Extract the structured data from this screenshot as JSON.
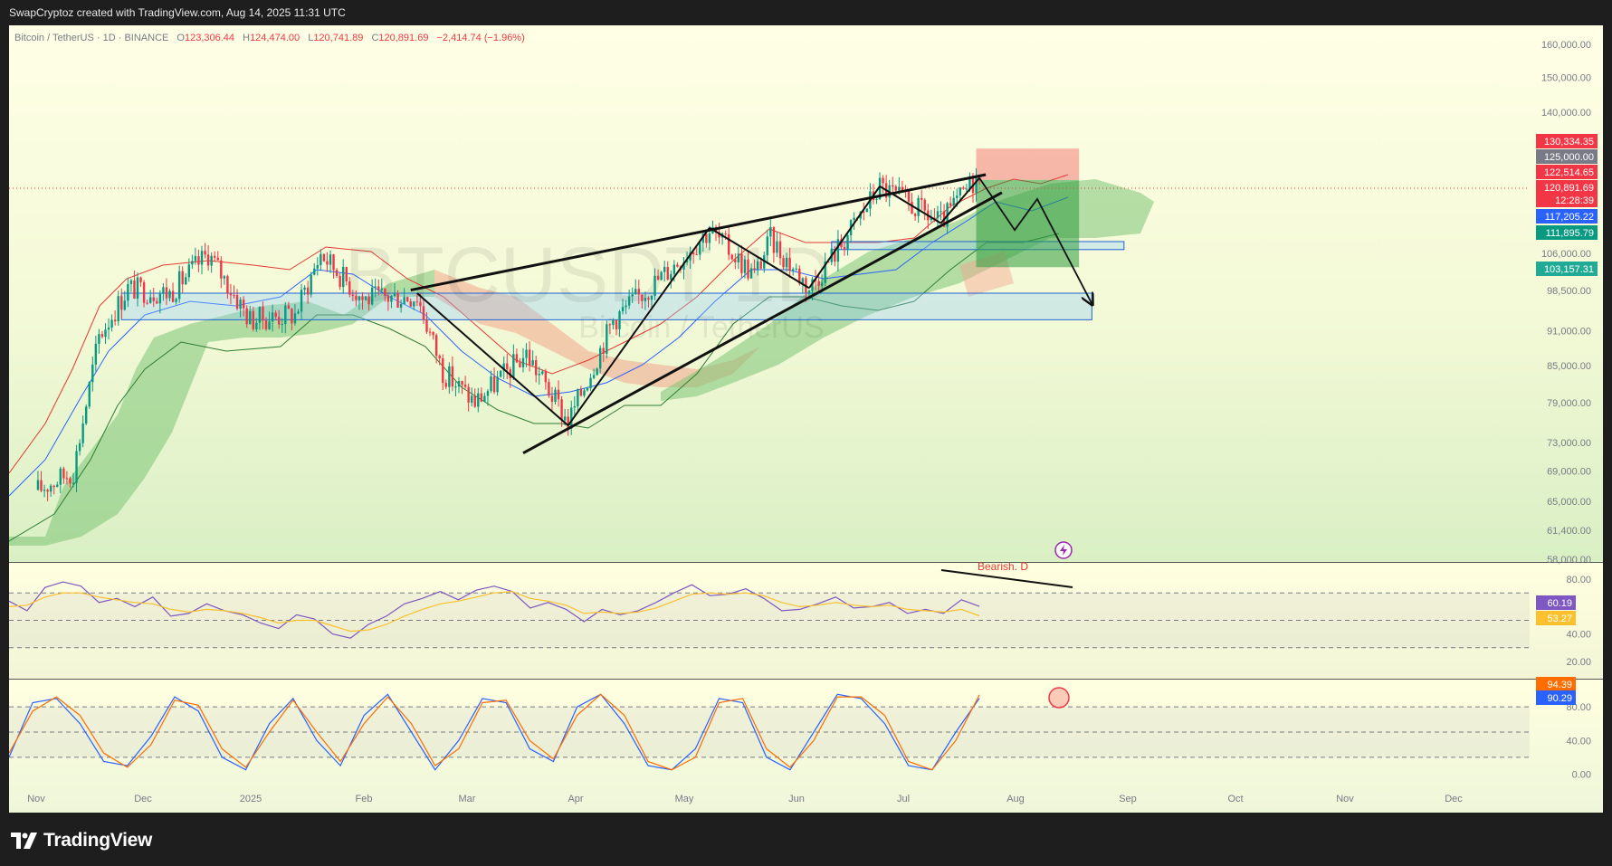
{
  "header": {
    "text": "SwapCryptoz created with TradingView.com, Aug 14, 2025 11:31 UTC"
  },
  "symbol_info": {
    "name": "Bitcoin / TetherUS · 1D · BINANCE",
    "o_label": "O",
    "o_value": "123,306.44",
    "h_label": "H",
    "h_value": "124,474.00",
    "l_label": "L",
    "l_value": "120,741.89",
    "c_label": "C",
    "c_value": "120,891.69",
    "change": "−2,414.74 (−1.96%)"
  },
  "watermark": {
    "ticker": "BTCUSDT 1D",
    "name": "Bitcoin / TetherUS"
  },
  "price_axis": {
    "ticks": [
      "160,000.00",
      "150,000.00",
      "140,000.00",
      "106,000.00",
      "98,500.00",
      "91,000.00",
      "85,000.00",
      "79,000.00",
      "73,000.00",
      "69,000.00",
      "65,000.00",
      "61,400.00",
      "58,000.00"
    ]
  },
  "price_badges": [
    {
      "text": "130,334.35",
      "color": "#f23645"
    },
    {
      "text": "125,000.00",
      "color": "#787b86"
    },
    {
      "text": "122,514.65",
      "color": "#f23645"
    },
    {
      "text": "120,891.69",
      "color": "#f23645"
    },
    {
      "text": "12:28:39",
      "color": "#f23645"
    },
    {
      "text": "117,205.22",
      "color": "#2962ff"
    },
    {
      "text": "111,895.79",
      "color": "#089981"
    },
    {
      "text": "103,157.31",
      "color": "#22ab94"
    }
  ],
  "rsi_panel": {
    "ticks": [
      "80.00",
      "40.00",
      "20.00"
    ],
    "annotation": "Bearish. D",
    "badges": [
      {
        "text": "60.19",
        "color": "#7e57c2"
      },
      {
        "text": "53.27",
        "color": "#fbc02d"
      }
    ]
  },
  "stoch_panel": {
    "ticks": [
      "80.00",
      "40.00",
      "0.00"
    ],
    "badges": [
      {
        "text": "94.39",
        "color": "#ff6d00"
      },
      {
        "text": "90.29",
        "color": "#2962ff"
      }
    ]
  },
  "time_axis": {
    "labels": [
      "Nov",
      "Dec",
      "2025",
      "Feb",
      "Mar",
      "Apr",
      "May",
      "Jun",
      "Jul",
      "Aug",
      "Sep",
      "Oct",
      "Nov",
      "Dec"
    ]
  },
  "footer": {
    "logo_text": "TradingView"
  },
  "chart_data": [
    {
      "type": "candlestick",
      "title": "Bitcoin / TetherUS · 1D · BINANCE",
      "y_scale": "log",
      "ylim": [
        58000,
        165000
      ],
      "x_range": [
        "2024-10-25",
        "2025-12-31"
      ],
      "close_path": [
        {
          "date": "2024-10-25",
          "close": 66500
        },
        {
          "date": "2024-11-05",
          "close": 69000
        },
        {
          "date": "2024-11-13",
          "close": 90000
        },
        {
          "date": "2024-11-22",
          "close": 99000
        },
        {
          "date": "2024-12-05",
          "close": 98000
        },
        {
          "date": "2024-12-17",
          "close": 106000
        },
        {
          "date": "2024-12-30",
          "close": 93000
        },
        {
          "date": "2025-01-13",
          "close": 94000
        },
        {
          "date": "2025-01-21",
          "close": 106000
        },
        {
          "date": "2025-02-03",
          "close": 97000
        },
        {
          "date": "2025-02-20",
          "close": 97500
        },
        {
          "date": "2025-02-28",
          "close": 84000
        },
        {
          "date": "2025-03-10",
          "close": 79000
        },
        {
          "date": "2025-03-26",
          "close": 87000
        },
        {
          "date": "2025-04-08",
          "close": 76000
        },
        {
          "date": "2025-04-22",
          "close": 93000
        },
        {
          "date": "2025-05-10",
          "close": 103000
        },
        {
          "date": "2025-05-22",
          "close": 111000
        },
        {
          "date": "2025-06-05",
          "close": 101500
        },
        {
          "date": "2025-06-10",
          "close": 109000
        },
        {
          "date": "2025-06-22",
          "close": 99000
        },
        {
          "date": "2025-07-03",
          "close": 109000
        },
        {
          "date": "2025-07-14",
          "close": 121000
        },
        {
          "date": "2025-08-02",
          "close": 112500
        },
        {
          "date": "2025-08-13",
          "close": 123300
        },
        {
          "date": "2025-08-14",
          "close": 120891.69
        }
      ],
      "drawings": {
        "rising_wedge_upper": [
          {
            "date": "2025-02-18",
            "price": 98600
          },
          {
            "date": "2025-08-16",
            "price": 123800
          }
        ],
        "rising_wedge_lower": [
          {
            "date": "2025-03-25",
            "price": 71500
          },
          {
            "date": "2025-08-21",
            "price": 119500
          }
        ],
        "trend_zigzag": [
          {
            "date": "2025-02-20",
            "price": 98000
          },
          {
            "date": "2025-04-08",
            "price": 75500
          },
          {
            "date": "2025-05-22",
            "price": 111500
          },
          {
            "date": "2025-06-22",
            "price": 99000
          },
          {
            "date": "2025-07-14",
            "price": 121000
          },
          {
            "date": "2025-08-02",
            "price": 112500
          },
          {
            "date": "2025-08-14",
            "price": 123000
          }
        ],
        "projection": [
          {
            "date": "2025-08-14",
            "price": 123000
          },
          {
            "date": "2025-08-25",
            "price": 111000
          },
          {
            "date": "2025-09-01",
            "price": 118000
          },
          {
            "date": "2025-09-18",
            "price": 96000
          }
        ],
        "support_zone_wide": {
          "from": "2024-11-20",
          "to": "2025-09-18",
          "top": 98000,
          "bottom": 93000
        },
        "support_zone_narrow": {
          "from": "2025-06-29",
          "to": "2025-09-28",
          "top": 108500,
          "bottom": 106800
        },
        "short_position": {
          "from": "2025-08-13",
          "to": "2025-09-14",
          "stop": 130334.35,
          "entry": 122514.65,
          "target": 103157.31
        }
      }
    },
    {
      "type": "line",
      "title": "RSI",
      "ylim": [
        10,
        88
      ],
      "levels": [
        70,
        50,
        30
      ],
      "series": [
        {
          "color": "#7e57c2",
          "values": [
            64,
            57,
            74,
            78,
            75,
            63,
            66,
            60,
            67,
            53,
            55,
            62,
            57,
            54,
            48,
            44,
            54,
            51,
            40,
            37,
            47,
            53,
            62,
            66,
            71,
            65,
            72,
            75,
            71,
            59,
            63,
            58,
            49,
            58,
            54,
            57,
            63,
            70,
            76,
            68,
            69,
            73,
            66,
            57,
            58,
            62,
            67,
            59,
            60,
            63,
            55,
            58,
            55,
            65,
            60.19
          ],
          "last": 60.19
        },
        {
          "color": "#fbc02d",
          "values": [
            60,
            61,
            67,
            70,
            70,
            67,
            65,
            63,
            62,
            58,
            56,
            58,
            57,
            55,
            52,
            48,
            50,
            50,
            46,
            42,
            43,
            47,
            53,
            58,
            62,
            64,
            67,
            70,
            71,
            66,
            64,
            61,
            55,
            56,
            55,
            56,
            59,
            64,
            69,
            70,
            69,
            70,
            68,
            63,
            60,
            61,
            63,
            61,
            60,
            61,
            58,
            57,
            56,
            58,
            53.27
          ],
          "last": 53.27
        }
      ]
    },
    {
      "type": "line",
      "title": "Stochastic RSI",
      "ylim": [
        -5,
        105
      ],
      "levels": [
        80,
        50,
        20
      ],
      "series": [
        {
          "color": "#2962ff",
          "values": [
            20,
            85,
            90,
            60,
            15,
            10,
            45,
            92,
            75,
            20,
            5,
            60,
            90,
            40,
            10,
            70,
            95,
            50,
            5,
            40,
            90,
            85,
            30,
            15,
            80,
            95,
            60,
            10,
            5,
            30,
            90,
            85,
            20,
            5,
            50,
            95,
            90,
            60,
            10,
            5,
            50,
            90.29
          ],
          "last": 90.29
        },
        {
          "color": "#ff6d00",
          "values": [
            25,
            75,
            92,
            70,
            25,
            8,
            35,
            88,
            82,
            30,
            8,
            50,
            88,
            50,
            15,
            60,
            92,
            60,
            10,
            30,
            85,
            88,
            40,
            18,
            70,
            95,
            70,
            15,
            5,
            20,
            85,
            90,
            30,
            8,
            40,
            92,
            92,
            70,
            15,
            5,
            40,
            94.39
          ],
          "last": 94.39
        }
      ]
    }
  ]
}
